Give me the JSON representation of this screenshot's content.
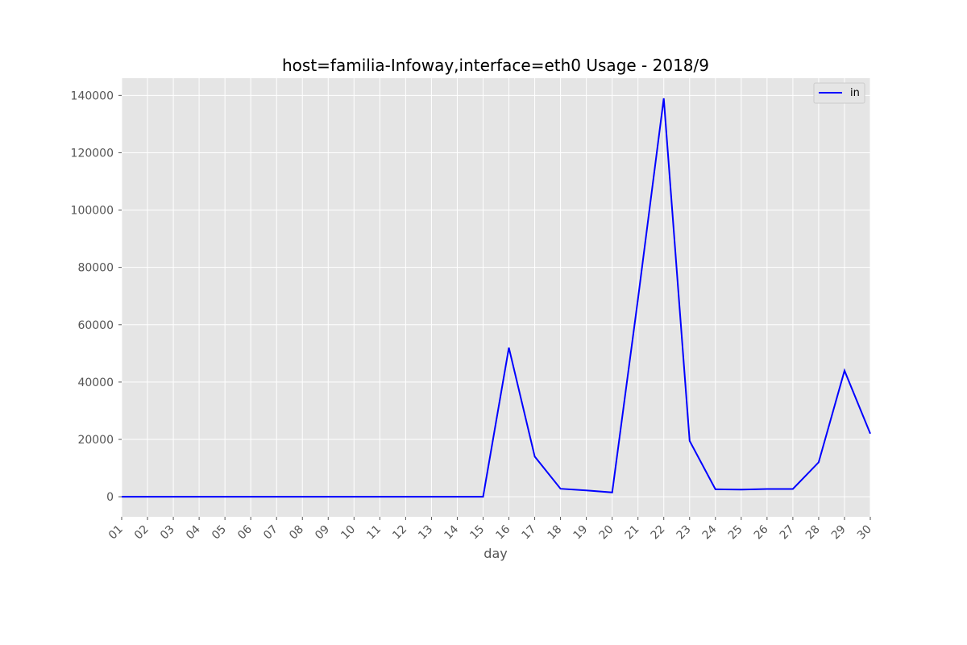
{
  "chart_data": {
    "type": "line",
    "title": "host=familia-Infoway,interface=eth0 Usage - 2018/9",
    "xlabel": "day",
    "ylabel": "",
    "categories": [
      "01",
      "02",
      "03",
      "04",
      "05",
      "06",
      "07",
      "08",
      "09",
      "10",
      "11",
      "12",
      "13",
      "14",
      "15",
      "16",
      "17",
      "18",
      "19",
      "20",
      "21",
      "22",
      "23",
      "24",
      "25",
      "26",
      "27",
      "28",
      "29",
      "30"
    ],
    "series": [
      {
        "name": "in",
        "color": "#0000ff",
        "values": [
          0,
          0,
          0,
          0,
          0,
          0,
          0,
          0,
          0,
          0,
          0,
          0,
          0,
          0,
          0,
          52000,
          14000,
          2800,
          2200,
          1500,
          69000,
          139000,
          19500,
          2600,
          2500,
          2700,
          2700,
          12000,
          44000,
          22000
        ]
      }
    ],
    "ylim": [
      -7000,
      146000
    ],
    "yticks": [
      0,
      20000,
      40000,
      60000,
      80000,
      100000,
      120000,
      140000
    ],
    "grid": true,
    "legend_position": "top-right",
    "background_color": "#e5e5e5",
    "grid_color": "#ffffff"
  }
}
